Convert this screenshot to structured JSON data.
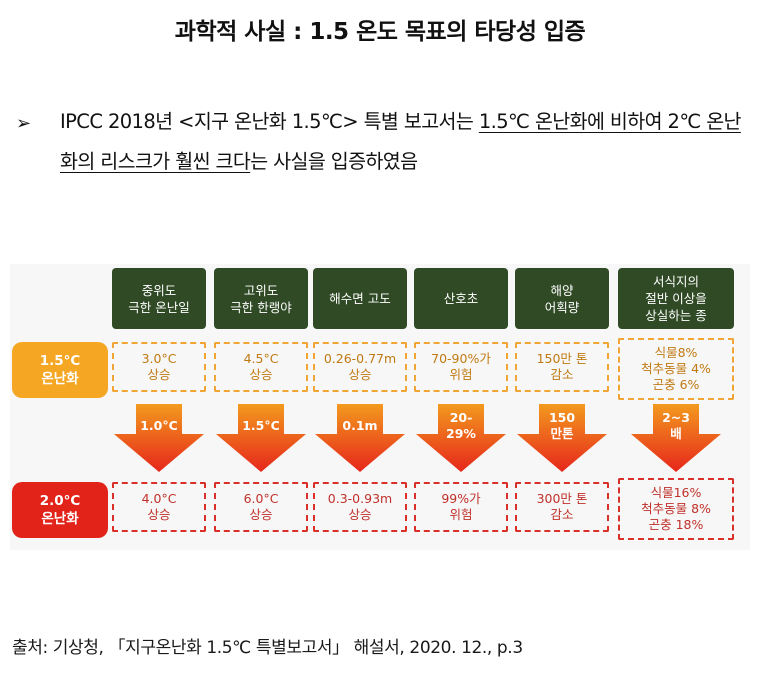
{
  "title": "과학적 사실 : 1.5 온도 목표의 타당성 입증",
  "bullet": {
    "marker": "➢",
    "part1": "IPCC 2018년 <지구 온난화 1.5℃> 특별 보고서는 ",
    "underlined": "1.5℃ 온난화에 비하여 2℃ 온난화의 리스크가 훨씬 크다",
    "part2": "는 사실을 입증하였음"
  },
  "panel": {
    "row_labels": {
      "r15": "1.5°C\n온난화",
      "r20": "2.0°C\n온난화"
    },
    "columns": [
      {
        "header": "중위도\n극한 온난일",
        "v15": "3.0°C\n상승",
        "arrow": "1.0°C",
        "v20": "4.0°C\n상승"
      },
      {
        "header": "고위도\n극한 한랭야",
        "v15": "4.5°C\n상승",
        "arrow": "1.5°C",
        "v20": "6.0°C\n상승"
      },
      {
        "header": "해수면 고도",
        "v15": "0.26-0.77m\n상승",
        "arrow": "0.1m",
        "v20": "0.3-0.93m\n상승"
      },
      {
        "header": "산호초",
        "v15": "70-90%가\n위험",
        "arrow": "20-\n29%",
        "v20": "99%가\n위험"
      },
      {
        "header": "해양\n어획량",
        "v15": "150만 톤\n감소",
        "arrow": "150\n만톤",
        "v20": "300만 톤\n감소"
      },
      {
        "header": "서식지의\n절반 이상을\n상실하는 종",
        "v15": "식물8%\n척추동물 4%\n곤충 6%",
        "arrow": "2~3\n배",
        "v20": "식물16%\n척추동물 8%\n곤충 18%"
      }
    ],
    "colors": {
      "header_bg": "#2f4a25",
      "orange": "#f5a623",
      "red": "#e2231a"
    }
  },
  "source": "출처: 기상청, 「지구온난화 1.5℃ 특별보고서」 해설서, 2020. 12., p.3"
}
